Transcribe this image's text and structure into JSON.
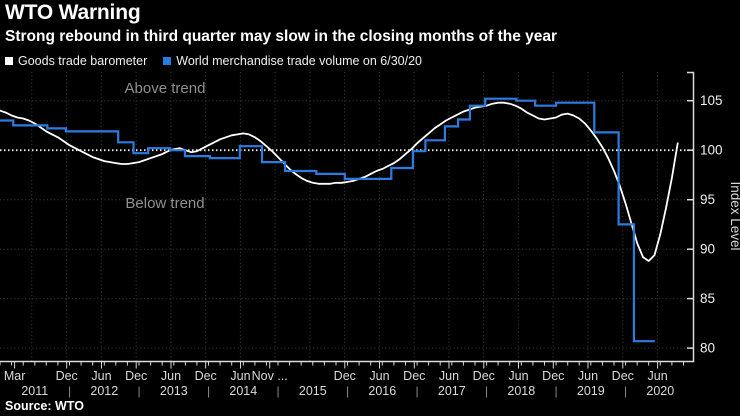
{
  "header": {
    "title": "WTO Warning",
    "subtitle": "Strong rebound in third quarter may slow in the closing months of the year"
  },
  "legend": [
    {
      "label": "Goods trade barometer",
      "color": "#ffffff"
    },
    {
      "label": "World merchandise trade volume on 6/30/20",
      "color": "#2b7ce2"
    }
  ],
  "annotations": {
    "above": "Above trend",
    "below": "Below trend"
  },
  "source": "Source: WTO",
  "colors": {
    "background": "#000000",
    "grid": "#3f3f3f",
    "trend_line": "#ededed",
    "axis": "#dcdcdc",
    "tick_label": "#d9d9d9",
    "y_label": "#f0f0f0",
    "annotation": "#909090",
    "separator": "#8a8a8a"
  },
  "chart_data": {
    "type": "line",
    "title": "WTO Warning",
    "subtitle": "Strong rebound in third quarter may slow in the closing months of the year",
    "ylabel": "Index Level",
    "ylim": [
      78.7,
      107.9
    ],
    "yticks": [
      80,
      85,
      90,
      95,
      100,
      105
    ],
    "trend_value": 100,
    "xlim": [
      2011.0,
      2020.97
    ],
    "grid": "dotted",
    "legend_position": "top-left",
    "year_separator": "|",
    "x_ticks": [
      {
        "t": 2011.21,
        "label": "Mar"
      },
      {
        "t": 2011.96,
        "label": "Dec"
      },
      {
        "t": 2012.46,
        "label": "Jun"
      },
      {
        "t": 2012.96,
        "label": "Dec"
      },
      {
        "t": 2013.46,
        "label": "Jun"
      },
      {
        "t": 2013.96,
        "label": "Dec"
      },
      {
        "t": 2014.46,
        "label": "Jun"
      },
      {
        "t": 2014.88,
        "label": "Nov ..."
      },
      {
        "t": 2015.96,
        "label": "Dec"
      },
      {
        "t": 2016.46,
        "label": "Jun"
      },
      {
        "t": 2016.96,
        "label": "Dec"
      },
      {
        "t": 2017.46,
        "label": "Jun"
      },
      {
        "t": 2017.96,
        "label": "Dec"
      },
      {
        "t": 2018.46,
        "label": "Jun"
      },
      {
        "t": 2018.96,
        "label": "Dec"
      },
      {
        "t": 2019.46,
        "label": "Jun"
      },
      {
        "t": 2019.96,
        "label": "Dec"
      },
      {
        "t": 2020.46,
        "label": "Jun"
      }
    ],
    "year_labels": [
      {
        "t": 2011.5,
        "label": "2011"
      },
      {
        "t": 2012.5,
        "label": "2012"
      },
      {
        "t": 2013.5,
        "label": "2013"
      },
      {
        "t": 2014.5,
        "label": "2014"
      },
      {
        "t": 2015.5,
        "label": "2015"
      },
      {
        "t": 2016.5,
        "label": "2016"
      },
      {
        "t": 2017.5,
        "label": "2017"
      },
      {
        "t": 2018.5,
        "label": "2018"
      },
      {
        "t": 2019.5,
        "label": "2019"
      },
      {
        "t": 2020.5,
        "label": "2020"
      }
    ],
    "series": [
      {
        "name": "Goods trade barometer",
        "color": "#ffffff",
        "style": "line",
        "width": 1.8,
        "t_start": 2011.0,
        "t_step": 0.0833333,
        "values": [
          104.0,
          103.8,
          103.5,
          103.3,
          103.2,
          103.0,
          102.7,
          102.3,
          101.9,
          101.6,
          101.3,
          100.9,
          100.5,
          100.2,
          99.9,
          99.6,
          99.3,
          99.1,
          98.9,
          98.8,
          98.7,
          98.6,
          98.6,
          98.7,
          98.8,
          99.0,
          99.2,
          99.4,
          99.6,
          99.9,
          100.1,
          100.2,
          100.0,
          99.8,
          99.9,
          100.2,
          100.5,
          100.8,
          101.1,
          101.3,
          101.5,
          101.6,
          101.7,
          101.6,
          101.3,
          100.9,
          100.4,
          99.9,
          99.3,
          98.7,
          98.1,
          97.6,
          97.2,
          96.9,
          96.7,
          96.6,
          96.6,
          96.6,
          96.7,
          96.7,
          96.8,
          96.9,
          97.1,
          97.3,
          97.6,
          97.9,
          98.1,
          98.4,
          98.7,
          99.1,
          99.6,
          100.1,
          100.7,
          101.2,
          101.7,
          102.2,
          102.6,
          103.0,
          103.3,
          103.6,
          103.9,
          104.1,
          104.3,
          104.4,
          104.5,
          104.7,
          104.8,
          104.8,
          104.7,
          104.5,
          104.2,
          103.8,
          103.5,
          103.2,
          103.1,
          103.2,
          103.3,
          103.6,
          103.7,
          103.5,
          103.2,
          102.7,
          102.0,
          101.2,
          100.3,
          99.2,
          97.9,
          96.4,
          94.6,
          92.6,
          90.6,
          89.2,
          88.8,
          89.4,
          91.5,
          94.2,
          97.2,
          100.7
        ]
      },
      {
        "name": "World merchandise trade volume on 6/30/20",
        "color": "#2b7ce2",
        "style": "step",
        "width": 2.2,
        "t_end": 2020.42,
        "points": [
          [
            2011.0,
            103.0
          ],
          [
            2011.19,
            102.5
          ],
          [
            2011.68,
            102.2
          ],
          [
            2011.95,
            101.9
          ],
          [
            2012.7,
            100.8
          ],
          [
            2012.92,
            99.7
          ],
          [
            2013.13,
            100.2
          ],
          [
            2013.45,
            100.0
          ],
          [
            2013.66,
            99.4
          ],
          [
            2014.02,
            99.2
          ],
          [
            2014.45,
            100.4
          ],
          [
            2014.77,
            98.8
          ],
          [
            2015.1,
            97.9
          ],
          [
            2015.55,
            97.6
          ],
          [
            2015.96,
            97.1
          ],
          [
            2016.63,
            98.2
          ],
          [
            2016.94,
            99.9
          ],
          [
            2017.12,
            101.0
          ],
          [
            2017.4,
            102.4
          ],
          [
            2017.59,
            103.1
          ],
          [
            2017.76,
            104.5
          ],
          [
            2017.98,
            105.2
          ],
          [
            2018.43,
            105.0
          ],
          [
            2018.7,
            104.5
          ],
          [
            2019.0,
            104.8
          ],
          [
            2019.55,
            101.8
          ],
          [
            2019.9,
            92.5
          ],
          [
            2020.12,
            80.7
          ]
        ]
      }
    ]
  }
}
